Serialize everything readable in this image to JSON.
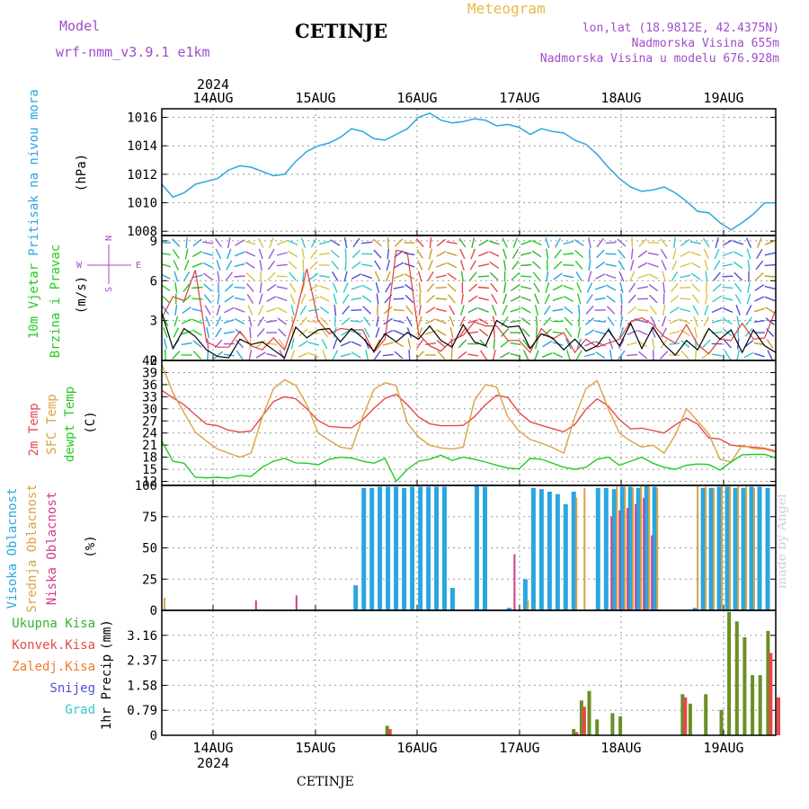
{
  "header": {
    "model_label": "Model",
    "model_name": "wrf-nmm_v3.9.1 e1km",
    "station": "CETINJE",
    "meteogram": "Meteogram",
    "lonlat": "lon,lat (18.9812E, 42.4375N)",
    "elevation": "Nadmorska Visina 655m",
    "model_elevation": "Nadmorska Visina u modelu 676.928m",
    "footer_station": "CETINJE",
    "credit": "made by Angel"
  },
  "time_axis": {
    "year": "2024",
    "day_labels": [
      "14AUG",
      "15AUG",
      "16AUG",
      "17AUG",
      "18AUG",
      "19AUG"
    ]
  },
  "colors": {
    "pressure": "#2aa6e0",
    "wind_speed": "#000000",
    "wind_gust": "#e03c3c",
    "t2m": "#e84848",
    "tsfc": "#d9a441",
    "dewpoint": "#22cc22",
    "cloud_high": "#2aa6e0",
    "cloud_mid": "#d9a441",
    "cloud_low": "#d43a8a",
    "precip_total": "#3ab034",
    "precip_conv": "#e84848",
    "snow": "#5050d8",
    "hail": "#33c8c8",
    "panel_label_purple": "#a04ccc"
  },
  "chart_data": [
    {
      "type": "line",
      "id": "pressure",
      "ylabel_parts": [
        "Pritisak na nivou mora",
        "(hPa)"
      ],
      "yticks": [
        1008,
        1010,
        1012,
        1014,
        1016
      ],
      "ylim": [
        1007.7,
        1016.6
      ],
      "grid": true,
      "series": [
        {
          "id": "mslp",
          "values": [
            1011.3,
            1010.4,
            1010.7,
            1011.3,
            1011.5,
            1011.7,
            1012.3,
            1012.6,
            1012.5,
            1012.2,
            1011.9,
            1012.0,
            1012.9,
            1013.6,
            1014.0,
            1014.2,
            1014.6,
            1015.2,
            1015.0,
            1014.5,
            1014.4,
            1014.8,
            1015.2,
            1016.0,
            1016.3,
            1015.8,
            1015.6,
            1015.7,
            1015.9,
            1015.8,
            1015.4,
            1015.5,
            1015.3,
            1014.8,
            1015.2,
            1015.0,
            1014.9,
            1014.4,
            1014.1,
            1013.4,
            1012.5,
            1011.7,
            1011.1,
            1010.8,
            1010.9,
            1011.1,
            1010.7,
            1010.1,
            1009.4,
            1009.3,
            1008.6,
            1008.1,
            1008.6,
            1009.2,
            1010.0,
            1010.0
          ]
        }
      ]
    },
    {
      "type": "line",
      "id": "wind",
      "ylabel_parts": [
        "10m Vjetar",
        "Brzina i Pravac",
        "(m/s)"
      ],
      "direction_key": {
        "north": "N",
        "south": "S",
        "east": "E",
        "west": "W"
      },
      "yticks": [
        0,
        3,
        6,
        9
      ],
      "ylim": [
        0,
        9.4
      ],
      "grid": true,
      "series": [
        {
          "id": "speed",
          "values": [
            3.6,
            0.9,
            2.4,
            1.8,
            0.8,
            0.3,
            0.2,
            1.6,
            1.2,
            1.4,
            0.8,
            0.2,
            2.5,
            1.7,
            2.3,
            2.4,
            1.4,
            2.4,
            1.7,
            0.7,
            2.0,
            1.4,
            2.1,
            1.6,
            2.6,
            1.5,
            1.0,
            2.7,
            1.4,
            1.1,
            3.0,
            2.5,
            2.6,
            0.9,
            2.0,
            1.7,
            0.8,
            1.6,
            0.7,
            1.1,
            2.3,
            1.1,
            2.8,
            0.9,
            2.5,
            1.2,
            0.4,
            1.5,
            0.8,
            2.4,
            1.6,
            2.3,
            0.6,
            2.3,
            1.1,
            0.6
          ]
        },
        {
          "id": "gust",
          "values": [
            3.2,
            4.8,
            4.5,
            6.8,
            1.4,
            1.0,
            1.0,
            2.2,
            1.1,
            0.8,
            1.7,
            0.8,
            3.4,
            6.9,
            3.0,
            2.0,
            2.4,
            2.3,
            2.3,
            0.6,
            1.6,
            8.3,
            8.1,
            2.0,
            1.1,
            0.7,
            1.5,
            1.9,
            2.9,
            2.6,
            2.6,
            1.5,
            1.5,
            0.6,
            2.4,
            1.6,
            2.1,
            0.6,
            1.6,
            1.0,
            1.3,
            1.6,
            2.9,
            3.2,
            2.7,
            1.8,
            1.3,
            2.7,
            1.2,
            0.5,
            1.6,
            1.5,
            2.8,
            1.6,
            1.7,
            3.8
          ]
        }
      ]
    },
    {
      "type": "line",
      "id": "temperature",
      "ylabel_parts": [
        "2m Temp",
        "SFC Temp",
        "dewpt Temp",
        "(C)"
      ],
      "yticks": [
        12,
        15,
        18,
        21,
        24,
        27,
        30,
        33,
        36,
        39,
        42
      ],
      "ylim": [
        11,
        42
      ],
      "grid": true,
      "series": [
        {
          "id": "t2m",
          "values": [
            34.6,
            32.7,
            31.0,
            28.5,
            26.2,
            25.8,
            24.7,
            24.2,
            24.5,
            28.2,
            31.8,
            33.0,
            32.5,
            30.0,
            27.1,
            25.6,
            25.4,
            25.3,
            27.3,
            30.1,
            32.6,
            33.6,
            31.0,
            28.0,
            26.3,
            25.8,
            25.8,
            25.9,
            28.0,
            31.0,
            33.4,
            32.8,
            29.1,
            26.8,
            25.9,
            25.1,
            24.3,
            26.1,
            29.9,
            32.5,
            30.7,
            27.3,
            25.0,
            25.2,
            24.6,
            24.0,
            26.0,
            27.7,
            26.2,
            22.8,
            22.5,
            21.0,
            20.7,
            20.5,
            20.2,
            19.5
          ]
        },
        {
          "id": "tsfc",
          "values": [
            41.0,
            34.0,
            29.0,
            24.2,
            22.0,
            20.0,
            19.0,
            18.0,
            19.0,
            28.0,
            35.0,
            37.2,
            35.8,
            31.0,
            24.0,
            22.2,
            20.5,
            20.0,
            28.0,
            34.8,
            36.5,
            35.8,
            26.5,
            23.0,
            21.0,
            20.3,
            20.0,
            20.5,
            32.0,
            36.0,
            35.4,
            28.0,
            24.5,
            22.4,
            21.5,
            20.4,
            19.0,
            28.0,
            35.0,
            37.0,
            30.0,
            24.0,
            22.0,
            20.5,
            21.0,
            19.0,
            23.5,
            30.0,
            27.0,
            23.8,
            17.5,
            16.8,
            21.0,
            20.1,
            20.0,
            19.2
          ]
        },
        {
          "id": "dewpt",
          "values": [
            22.0,
            17.0,
            16.5,
            13.0,
            12.9,
            13.0,
            12.8,
            13.5,
            13.2,
            15.5,
            17.0,
            17.7,
            16.6,
            16.5,
            16.1,
            17.5,
            18.0,
            17.8,
            17.0,
            16.5,
            17.7,
            12.0,
            15.0,
            17.0,
            17.5,
            18.5,
            17.2,
            18.0,
            17.5,
            16.8,
            16.0,
            15.3,
            15.1,
            17.7,
            17.5,
            16.5,
            15.5,
            15.0,
            15.5,
            17.5,
            18.0,
            16.0,
            17.0,
            18.0,
            16.5,
            15.5,
            15.0,
            16.0,
            16.3,
            16.2,
            14.8,
            16.8,
            18.6,
            18.7,
            18.7,
            17.8
          ]
        }
      ]
    },
    {
      "type": "bar",
      "id": "cloud_cover",
      "ylabel_parts": [
        "Visoka Oblacnost",
        "Srednja Oblacnost",
        "Niska Oblacnost",
        "(%)"
      ],
      "yticks": [
        0,
        25,
        50,
        75,
        100
      ],
      "ylim": [
        0,
        100
      ],
      "grid": true,
      "series": [
        {
          "id": "high",
          "values": [
            0,
            0,
            0,
            0,
            0,
            0,
            0,
            0,
            0,
            0,
            0,
            0,
            0,
            0,
            0,
            0,
            0,
            0,
            0,
            0,
            0,
            0,
            0,
            0,
            20,
            98,
            98,
            99,
            99,
            99,
            98,
            99,
            99,
            99,
            99,
            99,
            18,
            0,
            0,
            100,
            99,
            0,
            0,
            2,
            0,
            25,
            98,
            97,
            95,
            93,
            85,
            95,
            0,
            0,
            98,
            98,
            97,
            99,
            99,
            98,
            100,
            99,
            0,
            0,
            0,
            0,
            2,
            98,
            98,
            99,
            99,
            98,
            98,
            99,
            99,
            98,
            0
          ]
        },
        {
          "id": "mid",
          "values": [
            10,
            0,
            0,
            0,
            0,
            0,
            0,
            0,
            0,
            0,
            0,
            0,
            0,
            0,
            0,
            0,
            0,
            0,
            0,
            0,
            0,
            0,
            0,
            0,
            0,
            0,
            0,
            0,
            0,
            0,
            0,
            0,
            0,
            0,
            0,
            0,
            0,
            0,
            0,
            0,
            0,
            0,
            0,
            0,
            0,
            8,
            0,
            0,
            0,
            0,
            0,
            90,
            98,
            0,
            0,
            0,
            100,
            99,
            98,
            100,
            99,
            98,
            0,
            0,
            0,
            0,
            100,
            99,
            98,
            100,
            99,
            100,
            99,
            98,
            0,
            0,
            0
          ]
        },
        {
          "id": "low",
          "values": [
            0,
            0,
            0,
            0,
            0,
            0,
            0,
            0,
            0,
            0,
            0,
            0,
            8,
            0,
            0,
            0,
            0,
            12,
            0,
            0,
            0,
            0,
            0,
            0,
            0,
            0,
            0,
            0,
            0,
            0,
            0,
            0,
            0,
            0,
            0,
            0,
            0,
            0,
            0,
            0,
            0,
            0,
            0,
            0,
            45,
            0,
            0,
            0,
            0,
            0,
            0,
            0,
            0,
            0,
            0,
            0,
            75,
            80,
            82,
            85,
            90,
            60,
            0,
            0,
            0,
            0,
            0,
            0,
            0,
            0,
            0,
            0,
            0,
            0,
            0,
            0,
            0
          ]
        }
      ]
    },
    {
      "type": "bar",
      "id": "precipitation",
      "ylabel_parts": [
        "1hr Precip",
        "(mm)"
      ],
      "legend": [
        "Ukupna Kisa",
        "Konvek.Kisa",
        "Zaledj.Kisa",
        "Snijeg",
        "Grad"
      ],
      "yticks": [
        0,
        0.79,
        1.58,
        2.37,
        3.16
      ],
      "ylim": [
        0,
        3.95
      ],
      "grid": true,
      "series": [
        {
          "id": "total",
          "values": [
            0,
            0,
            0,
            0,
            0,
            0,
            0,
            0,
            0,
            0,
            0,
            0,
            0,
            0,
            0,
            0,
            0,
            0,
            0,
            0,
            0,
            0,
            0,
            0,
            0,
            0,
            0,
            0,
            0,
            0.3,
            0,
            0,
            0,
            0,
            0,
            0,
            0,
            0,
            0,
            0,
            0,
            0,
            0,
            0,
            0,
            0,
            0,
            0,
            0,
            0,
            0,
            0,
            0,
            0.2,
            1.1,
            1.4,
            0.5,
            0,
            0.7,
            0.6,
            0,
            0,
            0,
            0,
            0,
            0,
            0,
            1.3,
            1.0,
            0,
            1.3,
            0,
            0.8,
            3.9,
            3.6,
            3.1,
            1.9,
            1.9,
            3.3,
            0
          ]
        },
        {
          "id": "conv",
          "values": [
            0,
            0,
            0,
            0,
            0,
            0,
            0,
            0,
            0,
            0,
            0,
            0,
            0,
            0,
            0,
            0,
            0,
            0,
            0,
            0,
            0,
            0,
            0,
            0,
            0,
            0,
            0,
            0,
            0,
            0.2,
            0,
            0,
            0,
            0,
            0,
            0,
            0,
            0,
            0,
            0,
            0,
            0,
            0,
            0,
            0,
            0,
            0,
            0,
            0,
            0,
            0,
            0,
            0,
            0.1,
            0.9,
            0,
            0,
            0,
            0,
            0,
            0,
            0,
            0,
            0,
            0,
            0,
            0,
            1.2,
            0,
            0,
            0,
            0,
            0,
            0,
            0,
            0,
            0,
            0,
            2.6,
            1.2
          ]
        }
      ]
    }
  ]
}
